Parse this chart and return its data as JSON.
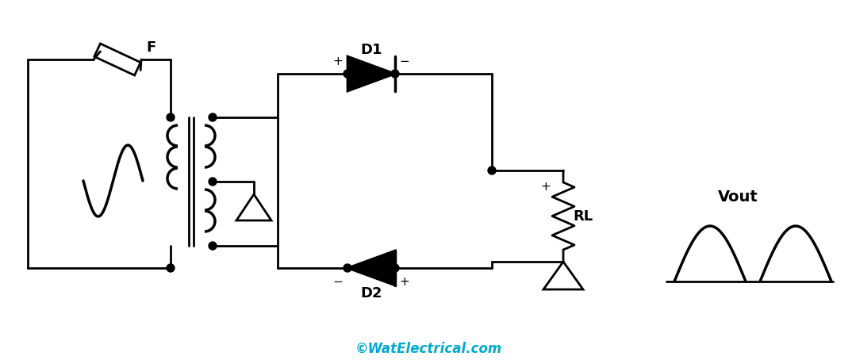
{
  "background_color": "#ffffff",
  "line_color": "#000000",
  "cyan_color": "#00aacc",
  "copyright_text": "©WatElectrical.com",
  "label_D1": "D1",
  "label_D2": "D2",
  "label_F": "F",
  "label_RL": "RL",
  "label_Vout": "Vout",
  "figsize": [
    10.79,
    4.54
  ],
  "dpi": 100,
  "lw": 2.0,
  "lw_thick": 2.5,
  "dot_r": 5
}
